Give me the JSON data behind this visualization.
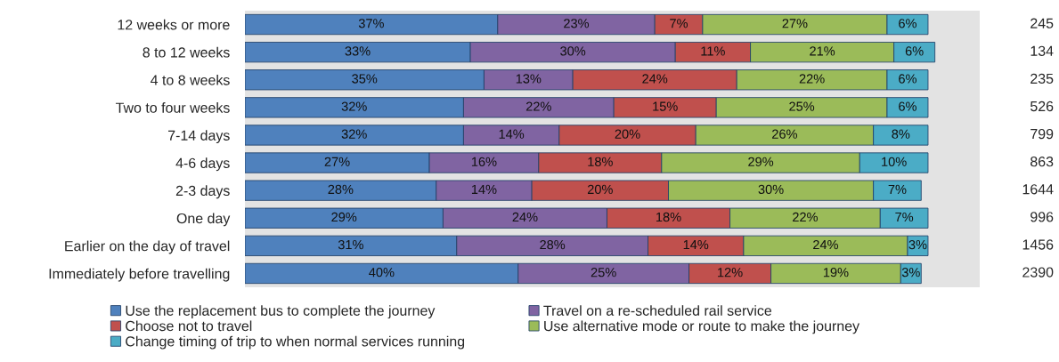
{
  "chart_data": {
    "type": "bar",
    "orientation": "horizontal",
    "stacked": true,
    "tick_labels": "y",
    "grid": false,
    "legend": "bottom",
    "categories": [
      "12 weeks or more",
      "8 to 12 weeks",
      "4 to 8 weeks",
      "Two to four weeks",
      "7-14 days",
      "4-6 days",
      "2-3 days",
      "One day",
      "Earlier on the day of travel",
      "Immediately before travelling"
    ],
    "series": [
      {
        "name": "Use the replacement bus to complete the journey",
        "color": "#4f81bd",
        "values": [
          37,
          33,
          35,
          32,
          32,
          27,
          28,
          29,
          31,
          40
        ],
        "value_labels": [
          "37%",
          "33%",
          "35%",
          "32%",
          "32%",
          "27%",
          "28%",
          "29%",
          "31%",
          "40%"
        ]
      },
      {
        "name": "Travel on a re-scheduled rail service",
        "color": "#8064a2",
        "values": [
          23,
          30,
          13,
          22,
          14,
          16,
          14,
          24,
          28,
          25
        ],
        "value_labels": [
          "23%",
          "30%",
          "13%",
          "22%",
          "14%",
          "16%",
          "14%",
          "24%",
          "28%",
          "25%"
        ]
      },
      {
        "name": "Choose not to travel",
        "color": "#c0504d",
        "values": [
          7,
          11,
          24,
          15,
          20,
          18,
          20,
          18,
          14,
          12
        ],
        "value_labels": [
          "7%",
          "11%",
          "24%",
          "15%",
          "20%",
          "18%",
          "20%",
          "18%",
          "14%",
          "12%"
        ]
      },
      {
        "name": "Use alternative mode or route to make the journey",
        "color": "#9bbb59",
        "values": [
          27,
          21,
          22,
          25,
          26,
          29,
          30,
          22,
          24,
          19
        ],
        "value_labels": [
          "27%",
          "21%",
          "22%",
          "25%",
          "26%",
          "29%",
          "30%",
          "22%",
          "24%",
          "19%"
        ]
      },
      {
        "name": "Change timing of trip to when normal services running",
        "color": "#4bacc6",
        "values": [
          6,
          6,
          6,
          6,
          8,
          10,
          7,
          7,
          3,
          3
        ],
        "value_labels": [
          "6%",
          "6%",
          "6%",
          "6%",
          "8%",
          "10%",
          "7%",
          "7%",
          "3%",
          "3%"
        ]
      }
    ],
    "annotations": [
      "245",
      "134",
      "235",
      "526",
      "799",
      "863",
      "1644",
      "996",
      "1456",
      "2390"
    ]
  }
}
